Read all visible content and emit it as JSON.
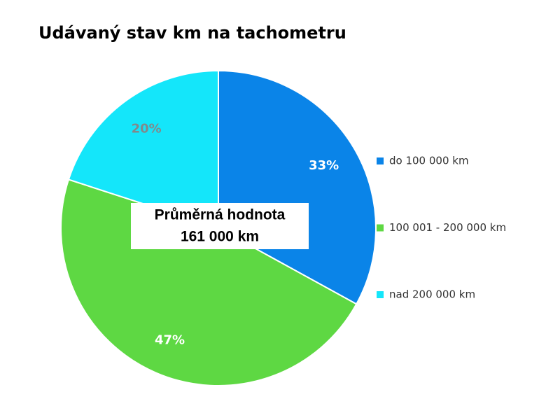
{
  "chart_data": {
    "type": "pie",
    "title": "Udávaný stav km na tachometru",
    "categories": [
      "do 100 000 km",
      "100 001 - 200 000 km",
      "nad 200 000 km"
    ],
    "values": [
      33,
      47,
      20
    ],
    "value_labels": [
      "33%",
      "47%",
      "20%"
    ],
    "colors": [
      "#0a84e8",
      "#5ed843",
      "#14e6fa"
    ],
    "value_label_colors": [
      "#ffffff",
      "#ffffff",
      "#808a8c"
    ],
    "legend": "right",
    "annotation": [
      "Průměrná  hodnota",
      "161 000 km"
    ]
  }
}
